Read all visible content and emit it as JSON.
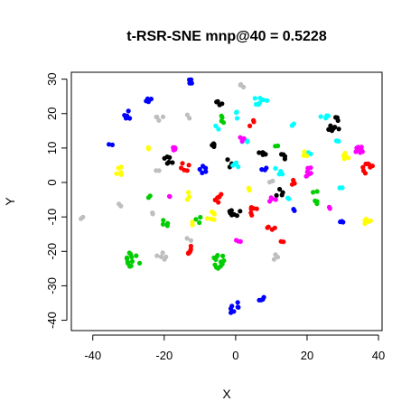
{
  "chart_data": {
    "type": "scatter",
    "title": "t-RSR-SNE mnp@40 = 0.5228",
    "xlabel": "X",
    "ylabel": "Y",
    "xlim": [
      -46,
      41
    ],
    "ylim": [
      -43,
      32
    ],
    "xticks": [
      -40,
      -20,
      0,
      20,
      40
    ],
    "yticks": [
      -40,
      -30,
      -20,
      -10,
      0,
      10,
      20,
      30
    ],
    "grid": false,
    "legend": "none",
    "colors": {
      "black": "#000000",
      "red": "#ff0000",
      "green": "#00cd00",
      "blue": "#0000ff",
      "cyan": "#00ffff",
      "magenta": "#ff00ff",
      "yellow": "#ffff00",
      "gray": "#bebebe"
    },
    "clusters": [
      {
        "color": "black",
        "cx": 27.5,
        "cy": 17.0,
        "n": 11,
        "spread": 2.2
      },
      {
        "color": "black",
        "cx": -19.0,
        "cy": 6.5,
        "n": 6,
        "spread": 1.6
      },
      {
        "color": "black",
        "cx": -4.5,
        "cy": 23.0,
        "n": 4,
        "spread": 1.0
      },
      {
        "color": "black",
        "cx": 8.0,
        "cy": 9.0,
        "n": 5,
        "spread": 1.6
      },
      {
        "color": "black",
        "cx": 14.0,
        "cy": 7.5,
        "n": 4,
        "spread": 1.4
      },
      {
        "color": "black",
        "cx": -6.0,
        "cy": 10.5,
        "n": 4,
        "spread": 1.5
      },
      {
        "color": "black",
        "cx": 0.0,
        "cy": -8.5,
        "n": 7,
        "spread": 1.7
      },
      {
        "color": "black",
        "cx": 12.0,
        "cy": -3.0,
        "n": 4,
        "spread": 1.5
      },
      {
        "color": "black",
        "cx": -2.0,
        "cy": 5.5,
        "n": 3,
        "spread": 1.3
      },
      {
        "color": "red",
        "cx": 37.0,
        "cy": 4.0,
        "n": 8,
        "spread": 1.6
      },
      {
        "color": "red",
        "cx": -14.0,
        "cy": 5.0,
        "n": 5,
        "spread": 1.6
      },
      {
        "color": "red",
        "cx": -12.5,
        "cy": -19.5,
        "n": 6,
        "spread": 1.4
      },
      {
        "color": "red",
        "cx": 5.0,
        "cy": -8.5,
        "n": 6,
        "spread": 1.7
      },
      {
        "color": "red",
        "cx": 10.0,
        "cy": -13.0,
        "n": 4,
        "spread": 1.2
      },
      {
        "color": "red",
        "cx": -5.0,
        "cy": -4.5,
        "n": 6,
        "spread": 1.5
      },
      {
        "color": "red",
        "cx": 16.0,
        "cy": 0.0,
        "n": 3,
        "spread": 1.0
      },
      {
        "color": "red",
        "cx": 13.0,
        "cy": -17.5,
        "n": 2,
        "spread": 0.5
      },
      {
        "color": "red",
        "cx": 5.0,
        "cy": 17.0,
        "n": 3,
        "spread": 1.2
      },
      {
        "color": "green",
        "cx": -29.0,
        "cy": -22.5,
        "n": 14,
        "spread": 2.4
      },
      {
        "color": "green",
        "cx": -4.5,
        "cy": -23.0,
        "n": 12,
        "spread": 2.0
      },
      {
        "color": "green",
        "cx": -20.0,
        "cy": -12.0,
        "n": 4,
        "spread": 1.2
      },
      {
        "color": "green",
        "cx": -10.0,
        "cy": -10.5,
        "n": 3,
        "spread": 1.2
      },
      {
        "color": "green",
        "cx": 22.5,
        "cy": -4.5,
        "n": 5,
        "spread": 2.0
      },
      {
        "color": "green",
        "cx": -4.0,
        "cy": 18.5,
        "n": 4,
        "spread": 1.4
      },
      {
        "color": "green",
        "cx": 11.5,
        "cy": 10.5,
        "n": 2,
        "spread": 0.6
      },
      {
        "color": "green",
        "cx": -24.0,
        "cy": -4.0,
        "n": 2,
        "spread": 0.6
      },
      {
        "color": "blue",
        "cx": -30.0,
        "cy": 19.5,
        "n": 5,
        "spread": 1.4
      },
      {
        "color": "blue",
        "cx": -24.5,
        "cy": 24.0,
        "n": 4,
        "spread": 0.9
      },
      {
        "color": "blue",
        "cx": -12.5,
        "cy": 29.5,
        "n": 4,
        "spread": 0.8
      },
      {
        "color": "blue",
        "cx": -35.0,
        "cy": 11.0,
        "n": 2,
        "spread": 0.6
      },
      {
        "color": "blue",
        "cx": -9.0,
        "cy": 4.0,
        "n": 5,
        "spread": 1.5
      },
      {
        "color": "blue",
        "cx": -1.0,
        "cy": -36.0,
        "n": 7,
        "spread": 2.0
      },
      {
        "color": "blue",
        "cx": 7.0,
        "cy": -33.5,
        "n": 4,
        "spread": 1.1
      },
      {
        "color": "blue",
        "cx": 29.5,
        "cy": -11.5,
        "n": 3,
        "spread": 0.9
      },
      {
        "color": "blue",
        "cx": 8.0,
        "cy": 4.5,
        "n": 3,
        "spread": 1.0
      },
      {
        "color": "blue",
        "cx": 16.5,
        "cy": -8.0,
        "n": 2,
        "spread": 0.8
      },
      {
        "color": "cyan",
        "cx": 7.0,
        "cy": 23.5,
        "n": 8,
        "spread": 2.0
      },
      {
        "color": "cyan",
        "cx": 25.0,
        "cy": 19.0,
        "n": 4,
        "spread": 1.2
      },
      {
        "color": "cyan",
        "cx": 16.0,
        "cy": 17.0,
        "n": 2,
        "spread": 0.8
      },
      {
        "color": "cyan",
        "cx": 0.0,
        "cy": 19.5,
        "n": 3,
        "spread": 1.2
      },
      {
        "color": "cyan",
        "cx": 0.0,
        "cy": 4.5,
        "n": 4,
        "spread": 1.4
      },
      {
        "color": "cyan",
        "cx": 3.0,
        "cy": 12.0,
        "n": 3,
        "spread": 1.2
      },
      {
        "color": "cyan",
        "cx": 12.0,
        "cy": 3.0,
        "n": 4,
        "spread": 1.4
      },
      {
        "color": "cyan",
        "cx": 15.0,
        "cy": -5.0,
        "n": 2,
        "spread": 0.8
      },
      {
        "color": "cyan",
        "cx": 29.0,
        "cy": 12.0,
        "n": 3,
        "spread": 1.0
      },
      {
        "color": "cyan",
        "cx": 21.0,
        "cy": 9.0,
        "n": 2,
        "spread": 0.8
      },
      {
        "color": "cyan",
        "cx": 29.5,
        "cy": -2.0,
        "n": 3,
        "spread": 0.8
      },
      {
        "color": "cyan",
        "cx": -5.0,
        "cy": 16.0,
        "n": 2,
        "spread": 0.8
      },
      {
        "color": "magenta",
        "cx": 34.5,
        "cy": 9.5,
        "n": 9,
        "spread": 1.2
      },
      {
        "color": "magenta",
        "cx": 20.0,
        "cy": 3.0,
        "n": 8,
        "spread": 1.8
      },
      {
        "color": "magenta",
        "cx": -17.0,
        "cy": 10.5,
        "n": 5,
        "spread": 1.2
      },
      {
        "color": "magenta",
        "cx": 1.5,
        "cy": 13.0,
        "n": 3,
        "spread": 1.2
      },
      {
        "color": "magenta",
        "cx": 1.0,
        "cy": -17.0,
        "n": 3,
        "spread": 1.0
      },
      {
        "color": "magenta",
        "cx": 10.5,
        "cy": -5.0,
        "n": 4,
        "spread": 1.2
      },
      {
        "color": "magenta",
        "cx": -18.5,
        "cy": -4.0,
        "n": 2,
        "spread": 0.8
      },
      {
        "color": "magenta",
        "cx": 26.5,
        "cy": -7.5,
        "n": 2,
        "spread": 0.8
      },
      {
        "color": "yellow",
        "cx": 37.0,
        "cy": -11.5,
        "n": 5,
        "spread": 1.0
      },
      {
        "color": "yellow",
        "cx": 31.0,
        "cy": 7.5,
        "n": 6,
        "spread": 1.2
      },
      {
        "color": "yellow",
        "cx": -32.5,
        "cy": 3.5,
        "n": 5,
        "spread": 1.4
      },
      {
        "color": "yellow",
        "cx": -7.0,
        "cy": -10.0,
        "n": 6,
        "spread": 1.6
      },
      {
        "color": "yellow",
        "cx": -13.0,
        "cy": -4.0,
        "n": 3,
        "spread": 1.2
      },
      {
        "color": "yellow",
        "cx": 19.0,
        "cy": 8.5,
        "n": 3,
        "spread": 1.2
      },
      {
        "color": "yellow",
        "cx": 3.5,
        "cy": -2.0,
        "n": 2,
        "spread": 0.7
      },
      {
        "color": "yellow",
        "cx": -12.0,
        "cy": -12.0,
        "n": 2,
        "spread": 0.7
      },
      {
        "color": "yellow",
        "cx": -24.0,
        "cy": 10.0,
        "n": 2,
        "spread": 0.7
      },
      {
        "color": "gray",
        "cx": 1.5,
        "cy": 28.0,
        "n": 3,
        "spread": 0.9
      },
      {
        "color": "gray",
        "cx": -21.0,
        "cy": 19.0,
        "n": 4,
        "spread": 1.2
      },
      {
        "color": "gray",
        "cx": -21.0,
        "cy": -21.5,
        "n": 5,
        "spread": 1.5
      },
      {
        "color": "gray",
        "cx": -43.0,
        "cy": -10.0,
        "n": 2,
        "spread": 0.7
      },
      {
        "color": "gray",
        "cx": -32.5,
        "cy": -6.5,
        "n": 2,
        "spread": 0.6
      },
      {
        "color": "gray",
        "cx": 11.0,
        "cy": -21.5,
        "n": 3,
        "spread": 1.0
      },
      {
        "color": "gray",
        "cx": -23.0,
        "cy": -8.5,
        "n": 2,
        "spread": 0.7
      },
      {
        "color": "gray",
        "cx": -13.0,
        "cy": -16.5,
        "n": 2,
        "spread": 0.7
      },
      {
        "color": "gray",
        "cx": -22.0,
        "cy": 3.5,
        "n": 2,
        "spread": 0.7
      },
      {
        "color": "gray",
        "cx": 10.0,
        "cy": 0.0,
        "n": 2,
        "spread": 0.7
      },
      {
        "color": "gray",
        "cx": -13.5,
        "cy": 19.0,
        "n": 2,
        "spread": 0.7
      }
    ]
  }
}
